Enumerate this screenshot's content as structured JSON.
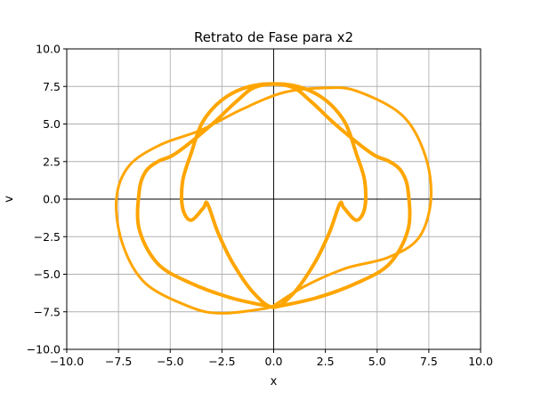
{
  "chart_data": {
    "type": "line",
    "title": "Retrato de Fase para x2",
    "xlabel": "x",
    "ylabel": "v",
    "xlim": [
      -10,
      10
    ],
    "ylim": [
      -10,
      10
    ],
    "grid": true,
    "legend": "none",
    "xticks": [
      -10,
      -7.5,
      -5,
      -2.5,
      0,
      2.5,
      5,
      7.5,
      10
    ],
    "yticks": [
      -10,
      -7.5,
      -5,
      -2.5,
      0,
      2.5,
      5,
      7.5,
      10
    ],
    "xtick_labels": [
      "−10.0",
      "−7.5",
      "−5.0",
      "−2.5",
      "0.0",
      "2.5",
      "5.0",
      "7.5",
      "10.0"
    ],
    "ytick_labels": [
      "−10.0",
      "−7.5",
      "−5.0",
      "−2.5",
      "0.0",
      "2.5",
      "5.0",
      "7.5",
      "10.0"
    ],
    "series": [
      {
        "color": "#ffa500",
        "curves": [
          {
            "name": "outer-lobes",
            "points": [
              [
                0,
                -7.1
              ],
              [
                1.5,
                -5.8
              ],
              [
                3.5,
                -4.6
              ],
              [
                5.5,
                -3.9
              ],
              [
                7.0,
                -2.6
              ],
              [
                7.6,
                0
              ],
              [
                7.3,
                3.0
              ],
              [
                6.2,
                5.6
              ],
              [
                4.0,
                7.2
              ],
              [
                2.5,
                7.4
              ],
              [
                0.5,
                7.1
              ],
              [
                -1.5,
                6.0
              ],
              [
                -3.5,
                4.6
              ],
              [
                -5.5,
                3.6
              ],
              [
                -7.0,
                2.2
              ],
              [
                -7.6,
                0
              ],
              [
                -7.3,
                -3.0
              ],
              [
                -6.2,
                -5.6
              ],
              [
                -4.0,
                -7.2
              ],
              [
                -2.5,
                -7.6
              ],
              [
                -0.5,
                -7.3
              ],
              [
                0,
                -7.1
              ]
            ]
          },
          {
            "name": "inner-lobes",
            "points": [
              [
                0,
                -7.2
              ],
              [
                -2.0,
                -6.6
              ],
              [
                -4.0,
                -5.6
              ],
              [
                -5.6,
                -4.3
              ],
              [
                -6.5,
                -2.0
              ],
              [
                -6.5,
                0.5
              ],
              [
                -6.2,
                1.8
              ],
              [
                -5.6,
                2.5
              ],
              [
                -4.9,
                2.9
              ],
              [
                -4.0,
                3.8
              ],
              [
                -2.8,
                5.2
              ],
              [
                -1.8,
                6.5
              ],
              [
                -0.8,
                7.5
              ],
              [
                0.8,
                7.6
              ],
              [
                2.3,
                6.8
              ],
              [
                3.4,
                5.2
              ],
              [
                4.0,
                3.0
              ],
              [
                4.4,
                1.2
              ],
              [
                4.4,
                -0.6
              ],
              [
                4.0,
                -1.4
              ],
              [
                3.4,
                -0.6
              ],
              [
                3.2,
                -0.3
              ],
              [
                2.7,
                -2.2
              ],
              [
                2.0,
                -4.2
              ],
              [
                1.0,
                -6.2
              ],
              [
                0,
                -7.2
              ],
              [
                -1.0,
                -6.2
              ],
              [
                -2.0,
                -4.2
              ],
              [
                -2.7,
                -2.2
              ],
              [
                -3.2,
                -0.3
              ],
              [
                -3.4,
                -0.6
              ],
              [
                -4.0,
                -1.4
              ],
              [
                -4.4,
                -0.6
              ],
              [
                -4.4,
                1.2
              ],
              [
                -4.0,
                3.0
              ],
              [
                -3.4,
                5.2
              ],
              [
                -2.3,
                6.8
              ],
              [
                -0.8,
                7.6
              ],
              [
                0.8,
                7.5
              ],
              [
                1.8,
                6.5
              ],
              [
                2.8,
                5.2
              ],
              [
                4.0,
                3.8
              ],
              [
                4.9,
                2.9
              ],
              [
                5.6,
                2.5
              ],
              [
                6.2,
                1.8
              ],
              [
                6.5,
                0.5
              ],
              [
                6.5,
                -2.0
              ],
              [
                5.6,
                -4.3
              ],
              [
                4.0,
                -5.6
              ],
              [
                2.0,
                -6.6
              ],
              [
                0,
                -7.2
              ]
            ]
          }
        ]
      }
    ]
  }
}
